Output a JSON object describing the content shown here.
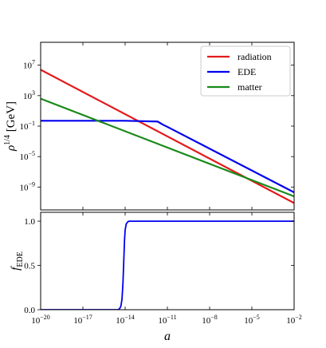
{
  "chart_data": [
    {
      "type": "line",
      "panel": "energy-density",
      "ylabel": "ρ^{1/4} [GeV]",
      "xscale": "log",
      "yscale": "log",
      "xlim": [
        1e-20,
        0.01
      ],
      "ylim": [
        1e-12,
        10000000000.0
      ],
      "y_ticks": [
        {
          "value": 10000000.0,
          "label": "10^7"
        },
        {
          "value": 1000.0,
          "label": "10^3"
        },
        {
          "value": 0.1,
          "label": "10^-1"
        },
        {
          "value": 1e-05,
          "label": "10^-5"
        },
        {
          "value": 1e-09,
          "label": "10^-9"
        }
      ],
      "legend": {
        "position": "upper right"
      },
      "series": [
        {
          "name": "radiation",
          "color": "#e31a1c",
          "x": [
            1e-20,
            0.01
          ],
          "y": [
            2500000.0,
            8e-12
          ]
        },
        {
          "name": "EDE",
          "color": "#0000ee",
          "x": [
            1e-20,
            1e-14,
            2e-12,
            5e-12,
            1e-11,
            0.01
          ],
          "y": [
            0.5,
            0.5,
            0.4,
            0.15,
            0.08,
            2e-10
          ]
        },
        {
          "name": "matter",
          "color": "#1a8a1a",
          "x": [
            1e-20,
            0.01
          ],
          "y": [
            400,
            6e-11
          ]
        }
      ]
    },
    {
      "type": "line",
      "panel": "ede-fraction",
      "xlabel": "a",
      "ylabel": "f_EDE",
      "xscale": "log",
      "xlim": [
        1e-20,
        0.01
      ],
      "ylim": [
        0,
        1.1
      ],
      "x_ticks": [
        {
          "value": 1e-20,
          "label": "10^-20"
        },
        {
          "value": 1e-17,
          "label": "10^-17"
        },
        {
          "value": 1e-14,
          "label": "10^-14"
        },
        {
          "value": 1e-11,
          "label": "10^-11"
        },
        {
          "value": 1e-08,
          "label": "10^-8"
        },
        {
          "value": 1e-05,
          "label": "10^-5"
        },
        {
          "value": 0.01,
          "label": "10^-2"
        }
      ],
      "y_ticks": [
        {
          "value": 0.0,
          "label": "0.0"
        },
        {
          "value": 0.5,
          "label": "0.5"
        },
        {
          "value": 1.0,
          "label": "1.0"
        }
      ],
      "series": [
        {
          "name": "EDE",
          "color": "#0000ee",
          "x": [
            1e-20,
            3e-15,
            4e-15,
            5e-15,
            6e-15,
            7e-15,
            8e-15,
            9e-15,
            1e-14,
            1.2e-14,
            1.6e-14,
            2e-14,
            3e-14,
            1e-13,
            0.01
          ],
          "y": [
            0,
            0,
            0.01,
            0.04,
            0.12,
            0.3,
            0.55,
            0.78,
            0.9,
            0.97,
            0.995,
            1.0,
            1.0,
            1.0,
            1.0
          ]
        }
      ]
    }
  ]
}
